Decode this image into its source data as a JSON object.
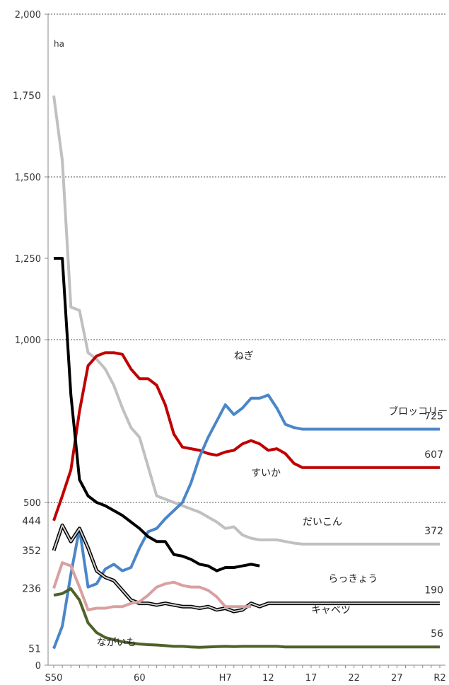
{
  "chart_data": {
    "type": "line",
    "ylabel": "ha",
    "ylim": [
      0,
      2000
    ],
    "y_ticks": [
      {
        "value": 0,
        "label": "0"
      },
      {
        "value": 500,
        "label": "500"
      },
      {
        "value": 1000,
        "label": "1,000"
      },
      {
        "value": 1250,
        "label": "1,250"
      },
      {
        "value": 1500,
        "label": "1,500"
      },
      {
        "value": 2000,
        "label": "2,000"
      }
    ],
    "gridlines": [
      500,
      1000,
      1500,
      2000
    ],
    "x": [
      "S50",
      "51",
      "52",
      "53",
      "54",
      "55",
      "56",
      "57",
      "58",
      "59",
      "60",
      "61",
      "62",
      "63",
      "H元",
      "2",
      "3",
      "4",
      "5",
      "6",
      "7",
      "8",
      "9",
      "10",
      "11",
      "12",
      "13",
      "14",
      "15",
      "16",
      "17",
      "18",
      "19",
      "20",
      "21",
      "22",
      "23",
      "24",
      "25",
      "26",
      "27",
      "28",
      "29",
      "30",
      "R元",
      "2"
    ],
    "x_tick_labels": [
      {
        "index": 0,
        "label": "S50"
      },
      {
        "index": 10,
        "label": "60"
      },
      {
        "index": 20,
        "label": "H7"
      },
      {
        "index": 25,
        "label": "12"
      },
      {
        "index": 30,
        "label": "17"
      },
      {
        "index": 35,
        "label": "22"
      },
      {
        "index": 40,
        "label": "27"
      },
      {
        "index": 45,
        "label": "R2"
      }
    ],
    "series": [
      {
        "name": "すいか",
        "color": "#c0c0c0",
        "label_at": {
          "index": 23,
          "value": 580
        },
        "start_label": "1,750",
        "end_label": "372",
        "points": [
          [
            0,
            1750
          ],
          [
            2,
            1550
          ],
          [
            4,
            1100
          ],
          [
            6,
            1090
          ],
          [
            8,
            960
          ],
          [
            10,
            940
          ],
          [
            12,
            910
          ],
          [
            14,
            860
          ],
          [
            16,
            790
          ],
          [
            18,
            730
          ],
          [
            20,
            700
          ],
          [
            22,
            610
          ],
          [
            24,
            520
          ],
          [
            26,
            510
          ],
          [
            28,
            500
          ],
          [
            30,
            490
          ],
          [
            32,
            480
          ],
          [
            34,
            470
          ],
          [
            36,
            455
          ],
          [
            38,
            440
          ],
          [
            40,
            420
          ],
          [
            42,
            425
          ],
          [
            44,
            400
          ],
          [
            46,
            390
          ],
          [
            48,
            385
          ],
          [
            50,
            385
          ],
          [
            52,
            385
          ],
          [
            54,
            380
          ],
          [
            56,
            375
          ],
          [
            58,
            372
          ],
          [
            60,
            372
          ],
          [
            62,
            372
          ],
          [
            64,
            372
          ],
          [
            66,
            372
          ],
          [
            68,
            372
          ],
          [
            70,
            372
          ],
          [
            72,
            372
          ],
          [
            74,
            372
          ],
          [
            76,
            372
          ],
          [
            78,
            372
          ],
          [
            80,
            372
          ],
          [
            82,
            372
          ],
          [
            84,
            372
          ],
          [
            86,
            372
          ],
          [
            88,
            372
          ],
          [
            90,
            372
          ]
        ]
      },
      {
        "name": "ねぎ",
        "color": "#c00000",
        "label_at": {
          "index": 21,
          "value": 940
        },
        "start_label": "444",
        "end_label": "607",
        "points": [
          [
            0,
            444
          ],
          [
            2,
            520
          ],
          [
            4,
            600
          ],
          [
            6,
            780
          ],
          [
            8,
            920
          ],
          [
            10,
            950
          ],
          [
            12,
            960
          ],
          [
            14,
            960
          ],
          [
            16,
            955
          ],
          [
            18,
            910
          ],
          [
            20,
            880
          ],
          [
            22,
            880
          ],
          [
            24,
            860
          ],
          [
            26,
            800
          ],
          [
            28,
            710
          ],
          [
            30,
            670
          ],
          [
            32,
            665
          ],
          [
            34,
            660
          ],
          [
            36,
            650
          ],
          [
            38,
            645
          ],
          [
            40,
            655
          ],
          [
            42,
            660
          ],
          [
            44,
            680
          ],
          [
            46,
            690
          ],
          [
            48,
            680
          ],
          [
            50,
            660
          ],
          [
            52,
            665
          ],
          [
            54,
            650
          ],
          [
            56,
            620
          ],
          [
            58,
            607
          ],
          [
            60,
            607
          ],
          [
            62,
            607
          ],
          [
            64,
            607
          ],
          [
            66,
            607
          ],
          [
            68,
            607
          ],
          [
            70,
            607
          ],
          [
            72,
            607
          ],
          [
            74,
            607
          ],
          [
            76,
            607
          ],
          [
            78,
            607
          ],
          [
            80,
            607
          ],
          [
            82,
            607
          ],
          [
            84,
            607
          ],
          [
            86,
            607
          ],
          [
            88,
            607
          ],
          [
            90,
            607
          ]
        ]
      },
      {
        "name": "ブロッコリー",
        "color": "#4a86c8",
        "label_at": {
          "index": 39,
          "value": 770
        },
        "start_label": "51",
        "end_label": "725",
        "points": [
          [
            0,
            51
          ],
          [
            2,
            120
          ],
          [
            4,
            280
          ],
          [
            6,
            420
          ],
          [
            8,
            240
          ],
          [
            10,
            250
          ],
          [
            12,
            295
          ],
          [
            14,
            310
          ],
          [
            16,
            290
          ],
          [
            18,
            300
          ],
          [
            20,
            360
          ],
          [
            22,
            410
          ],
          [
            24,
            420
          ],
          [
            26,
            450
          ],
          [
            28,
            475
          ],
          [
            30,
            500
          ],
          [
            32,
            560
          ],
          [
            34,
            640
          ],
          [
            36,
            700
          ],
          [
            38,
            750
          ],
          [
            40,
            800
          ],
          [
            42,
            770
          ],
          [
            44,
            790
          ],
          [
            46,
            820
          ],
          [
            48,
            820
          ],
          [
            50,
            830
          ],
          [
            52,
            790
          ],
          [
            54,
            740
          ],
          [
            56,
            730
          ],
          [
            58,
            725
          ],
          [
            60,
            725
          ],
          [
            62,
            725
          ],
          [
            64,
            725
          ],
          [
            66,
            725
          ],
          [
            68,
            725
          ],
          [
            70,
            725
          ],
          [
            72,
            725
          ],
          [
            74,
            725
          ],
          [
            76,
            725
          ],
          [
            78,
            725
          ],
          [
            80,
            725
          ],
          [
            82,
            725
          ],
          [
            84,
            725
          ],
          [
            86,
            725
          ],
          [
            88,
            725
          ],
          [
            90,
            725
          ]
        ]
      },
      {
        "name": "だいこん",
        "color": "#000000",
        "label_at": {
          "index": 29,
          "value": 430
        },
        "start_label": "",
        "end_label": "",
        "points": [
          [
            0,
            1250
          ],
          [
            2,
            1250
          ],
          [
            4,
            830
          ],
          [
            6,
            570
          ],
          [
            8,
            520
          ],
          [
            10,
            500
          ],
          [
            12,
            490
          ],
          [
            14,
            475
          ],
          [
            16,
            460
          ],
          [
            18,
            440
          ],
          [
            20,
            420
          ],
          [
            22,
            395
          ],
          [
            24,
            380
          ],
          [
            26,
            380
          ],
          [
            28,
            340
          ],
          [
            30,
            335
          ],
          [
            32,
            325
          ],
          [
            34,
            310
          ],
          [
            36,
            305
          ],
          [
            38,
            290
          ],
          [
            40,
            300
          ],
          [
            42,
            300
          ],
          [
            44,
            305
          ],
          [
            46,
            310
          ],
          [
            48,
            305
          ]
        ]
      },
      {
        "name": "キャベツ",
        "color": "#555555",
        "label_at": {
          "index": 30,
          "value": 160
        },
        "start_label": "352",
        "end_label": "190",
        "points": [
          [
            0,
            352
          ],
          [
            2,
            430
          ],
          [
            4,
            380
          ],
          [
            6,
            420
          ],
          [
            8,
            360
          ],
          [
            10,
            290
          ],
          [
            12,
            270
          ],
          [
            14,
            260
          ],
          [
            16,
            230
          ],
          [
            18,
            200
          ],
          [
            20,
            190
          ],
          [
            22,
            190
          ],
          [
            24,
            185
          ],
          [
            26,
            190
          ],
          [
            28,
            185
          ],
          [
            30,
            180
          ],
          [
            32,
            180
          ],
          [
            34,
            175
          ],
          [
            36,
            180
          ],
          [
            38,
            170
          ],
          [
            40,
            175
          ],
          [
            42,
            165
          ],
          [
            44,
            170
          ],
          [
            46,
            190
          ],
          [
            48,
            180
          ],
          [
            50,
            190
          ],
          [
            52,
            190
          ],
          [
            54,
            190
          ],
          [
            56,
            190
          ],
          [
            58,
            190
          ],
          [
            60,
            190
          ],
          [
            62,
            190
          ],
          [
            64,
            190
          ],
          [
            66,
            190
          ],
          [
            68,
            190
          ],
          [
            70,
            190
          ],
          [
            72,
            190
          ],
          [
            74,
            190
          ],
          [
            76,
            190
          ],
          [
            78,
            190
          ],
          [
            80,
            190
          ],
          [
            82,
            190
          ],
          [
            84,
            190
          ],
          [
            86,
            190
          ],
          [
            88,
            190
          ],
          [
            90,
            190
          ]
        ]
      },
      {
        "name": "らっきょう",
        "color": "#d9a0a0",
        "label_at": {
          "index": 32,
          "value": 255
        },
        "start_label": "236",
        "end_label": "",
        "points": [
          [
            0,
            236
          ],
          [
            2,
            315
          ],
          [
            4,
            305
          ],
          [
            6,
            240
          ],
          [
            8,
            170
          ],
          [
            10,
            175
          ],
          [
            12,
            175
          ],
          [
            14,
            180
          ],
          [
            16,
            180
          ],
          [
            18,
            190
          ],
          [
            20,
            195
          ],
          [
            22,
            215
          ],
          [
            24,
            240
          ],
          [
            26,
            250
          ],
          [
            28,
            255
          ],
          [
            30,
            245
          ],
          [
            32,
            240
          ],
          [
            34,
            240
          ],
          [
            36,
            230
          ],
          [
            38,
            210
          ],
          [
            40,
            180
          ],
          [
            42,
            180
          ],
          [
            44,
            180
          ],
          [
            46,
            180
          ]
        ]
      },
      {
        "name": "ながいも",
        "color": "#4f6228",
        "label_at": {
          "index": 5,
          "value": 60
        },
        "start_label": "",
        "end_label": "56",
        "points": [
          [
            0,
            215
          ],
          [
            2,
            220
          ],
          [
            4,
            235
          ],
          [
            6,
            200
          ],
          [
            8,
            130
          ],
          [
            10,
            100
          ],
          [
            12,
            85
          ],
          [
            14,
            78
          ],
          [
            16,
            72
          ],
          [
            18,
            68
          ],
          [
            20,
            65
          ],
          [
            22,
            63
          ],
          [
            24,
            62
          ],
          [
            26,
            60
          ],
          [
            28,
            58
          ],
          [
            30,
            58
          ],
          [
            32,
            56
          ],
          [
            34,
            55
          ],
          [
            36,
            56
          ],
          [
            38,
            57
          ],
          [
            40,
            58
          ],
          [
            42,
            57
          ],
          [
            44,
            58
          ],
          [
            46,
            58
          ],
          [
            48,
            58
          ],
          [
            50,
            58
          ],
          [
            52,
            58
          ],
          [
            54,
            56
          ],
          [
            56,
            56
          ],
          [
            58,
            56
          ],
          [
            60,
            56
          ],
          [
            62,
            56
          ],
          [
            64,
            56
          ],
          [
            66,
            56
          ],
          [
            68,
            56
          ],
          [
            70,
            56
          ],
          [
            72,
            56
          ],
          [
            74,
            56
          ],
          [
            76,
            56
          ],
          [
            78,
            56
          ],
          [
            80,
            56
          ],
          [
            82,
            56
          ],
          [
            84,
            56
          ],
          [
            86,
            56
          ],
          [
            88,
            56
          ],
          [
            90,
            56
          ]
        ]
      }
    ]
  }
}
